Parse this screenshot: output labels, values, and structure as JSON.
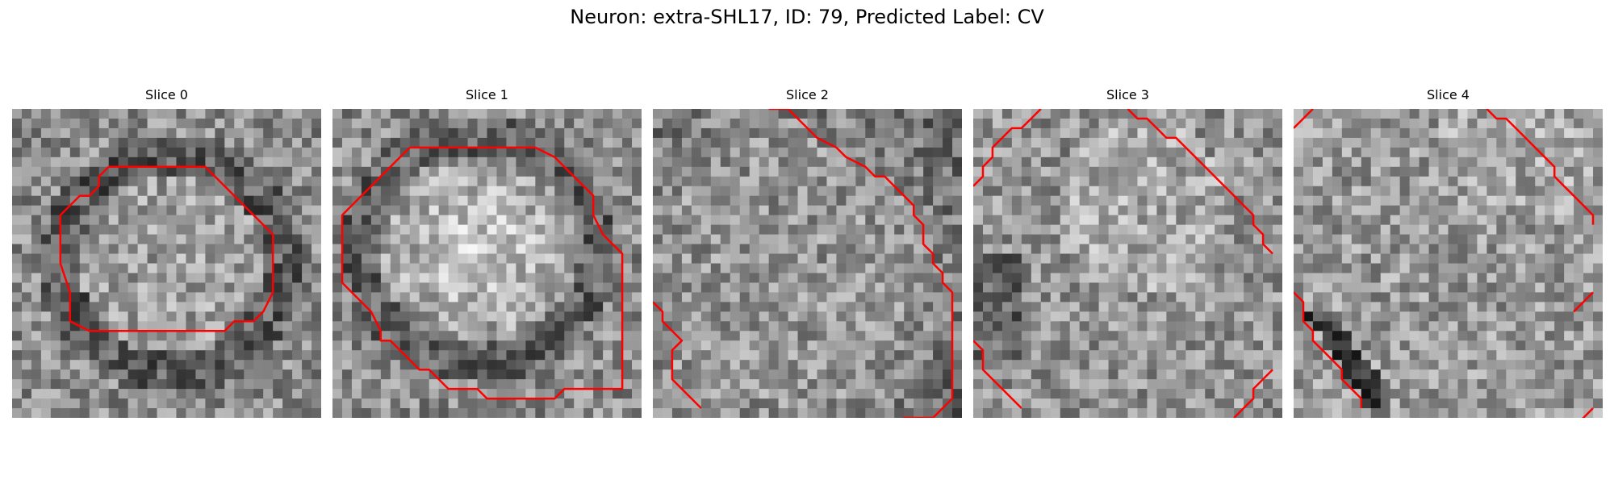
{
  "figure": {
    "title": "Neuron: extra-SHL17, ID: 79, Predicted Label: CV"
  },
  "colors": {
    "contour": "#ff0000",
    "colormap": "gray"
  },
  "panels": [
    {
      "title": "Slice 0"
    },
    {
      "title": "Slice 1"
    },
    {
      "title": "Slice 2"
    },
    {
      "title": "Slice 3"
    },
    {
      "title": "Slice 4"
    }
  ]
}
